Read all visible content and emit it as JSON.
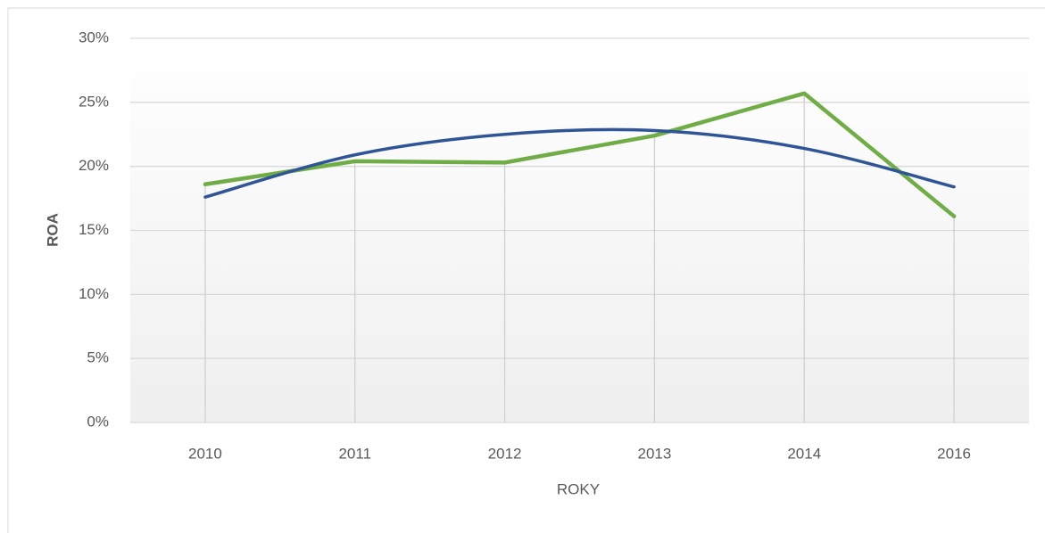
{
  "chart_data": {
    "type": "line",
    "xlabel": "ROKY",
    "ylabel": "ROA",
    "categories": [
      "2010",
      "2011",
      "2012",
      "2013",
      "2014",
      "2016"
    ],
    "series": [
      {
        "color": "#70ad47",
        "values": [
          18.6,
          20.4,
          20.3,
          22.4,
          25.7,
          16.1
        ],
        "drop_lines": true
      },
      {
        "color": "#2f5597",
        "values": [
          17.6,
          20.9,
          22.5,
          22.8,
          21.4,
          18.4
        ],
        "smooth": true
      }
    ],
    "ylim": [
      0,
      30
    ],
    "yticks": [
      {
        "value": 0,
        "label": "0%"
      },
      {
        "value": 5,
        "label": "5%"
      },
      {
        "value": 10,
        "label": "10%"
      },
      {
        "value": 15,
        "label": "15%"
      },
      {
        "value": 20,
        "label": "20%"
      },
      {
        "value": 25,
        "label": "25%"
      },
      {
        "value": 30,
        "label": "30%"
      }
    ],
    "grid": true
  }
}
